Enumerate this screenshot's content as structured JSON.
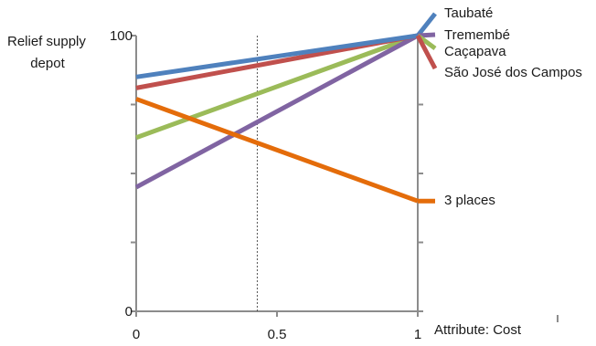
{
  "chart_data": {
    "type": "line",
    "ylabel": "Relief supply depot",
    "xlabel": "Attribute: Cost",
    "x": [
      0,
      1
    ],
    "xlim": [
      0,
      1
    ],
    "ylim": [
      0,
      100
    ],
    "x_ticks": [
      "0",
      "0.5",
      "1"
    ],
    "y_ticks": [
      "0",
      "100"
    ],
    "y_minor_ticks": [
      25,
      50,
      75
    ],
    "reference_line_x": 0.43,
    "grid": false,
    "series": [
      {
        "name": "Taubaté",
        "values": [
          85,
          100
        ],
        "color": "#4f81bd"
      },
      {
        "name": "Tremembé",
        "values": [
          45,
          100
        ],
        "color": "#8064a2"
      },
      {
        "name": "Caçapava",
        "values": [
          63,
          100
        ],
        "color": "#9bbb59"
      },
      {
        "name": "São José dos Campos",
        "values": [
          81,
          100
        ],
        "color": "#c0504d"
      },
      {
        "name": "3 places",
        "values": [
          77,
          40
        ],
        "color": "#e46c0a"
      }
    ]
  }
}
